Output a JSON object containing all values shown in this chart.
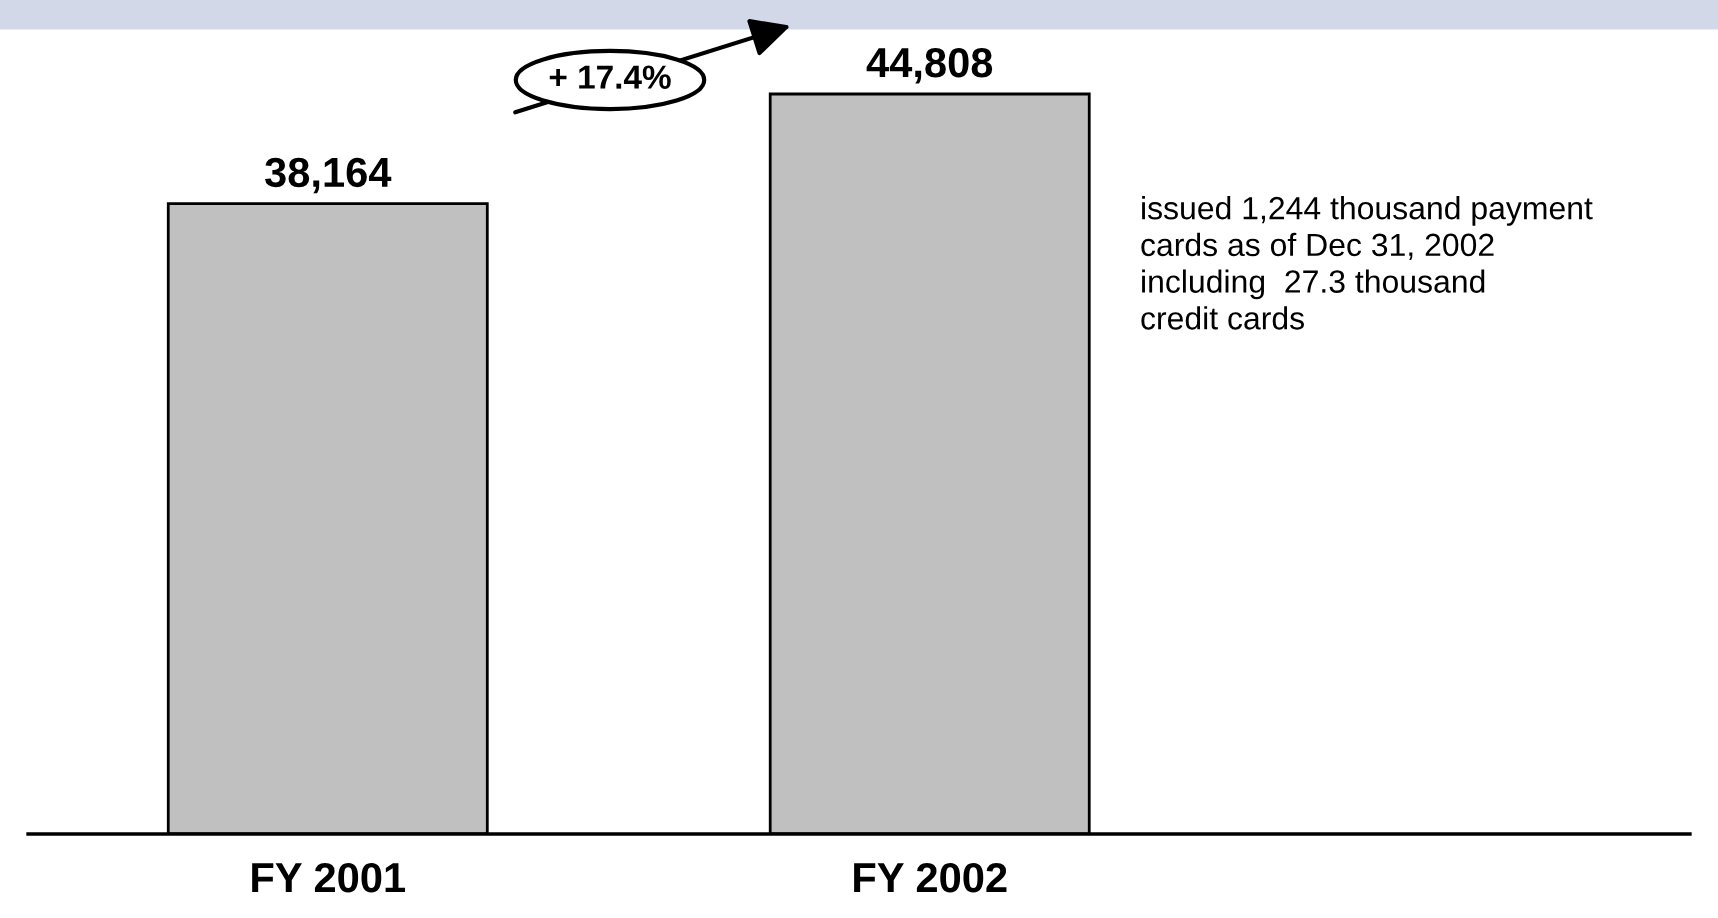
{
  "chart_data": {
    "type": "bar",
    "categories": [
      "FY 2001",
      "FY 2002"
    ],
    "values": [
      38164,
      44808
    ],
    "color": "#c0c0c0",
    "data_labels": true,
    "value_labels": [
      "38,164",
      "44,808"
    ],
    "annotations": [
      "+ 17.4%",
      "issued 1,244 thousand payment\ncards as of Dec 31, 2002\nincluding  27.3 thousand\ncredit cards"
    ],
    "grid": false,
    "legend": false
  }
}
